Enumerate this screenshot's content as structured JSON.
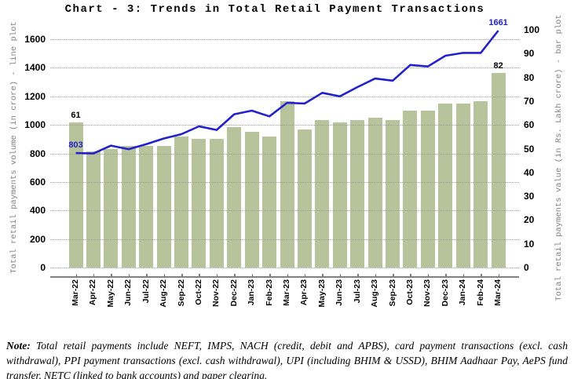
{
  "title": "Chart - 3: Trends in Total Retail Payment Transactions",
  "chart_data": {
    "type": "combo bar+line, dual y-axes",
    "categories": [
      "Mar-22",
      "Apr-22",
      "May-22",
      "Jun-22",
      "Jul-22",
      "Aug-22",
      "Sep-22",
      "Oct-22",
      "Nov-22",
      "Dec-22",
      "Jan-23",
      "Feb-23",
      "Mar-23",
      "Apr-23",
      "May-23",
      "Jun-23",
      "Jul-23",
      "Aug-23",
      "Sep-23",
      "Oct-23",
      "Nov-23",
      "Dec-23",
      "Jan-24",
      "Feb-24",
      "Mar-24"
    ],
    "series": [
      {
        "name": "Total retail payments value (in Rs. Lakh crore) - bar plot",
        "type": "bar",
        "axis": "right",
        "color": "#b7c39a",
        "values": [
          61,
          49,
          50,
          51,
          51,
          51,
          55,
          54,
          54,
          59,
          57,
          55,
          70,
          58,
          62,
          61,
          62,
          63,
          62,
          66,
          66,
          69,
          69,
          70,
          82
        ]
      },
      {
        "name": "Total retail payments volume (in crore) - line plot",
        "type": "line",
        "axis": "left",
        "color": "#2222cc",
        "values": [
          803,
          800,
          855,
          830,
          865,
          905,
          935,
          990,
          965,
          1075,
          1100,
          1060,
          1155,
          1150,
          1225,
          1200,
          1265,
          1325,
          1310,
          1420,
          1410,
          1485,
          1505,
          1505,
          1661
        ]
      }
    ],
    "left_axis": {
      "label": "Total retail payments volume (in crore) - line plot",
      "min": 0,
      "max": 1600,
      "step": 200
    },
    "right_axis": {
      "label": "Total retail payments value (in Rs. Lakh crore) - bar plot",
      "min": 0,
      "max": 100,
      "step": 10
    },
    "grid": "horizontal dotted lines at left-axis ticks",
    "legend": "none",
    "annotations": [
      {
        "text": "61",
        "target": "bar",
        "index": 0,
        "color": "#000000"
      },
      {
        "text": "803",
        "target": "line",
        "index": 0,
        "color": "#2222cc"
      },
      {
        "text": "82",
        "target": "bar",
        "index": 24,
        "color": "#000000"
      },
      {
        "text": "1661",
        "target": "line",
        "index": 24,
        "color": "#2222cc"
      }
    ]
  },
  "note": {
    "label": "Note:",
    "text": "Total retail payments include NEFT, IMPS, NACH (credit, debit and APBS), card payment transactions (excl. cash withdrawal), PPI payment transactions (excl. cash withdrawal), UPI (including BHIM & USSD), BHIM Aadhaar Pay, AePS fund transfer, NETC (linked to bank accounts) and paper clearing."
  }
}
